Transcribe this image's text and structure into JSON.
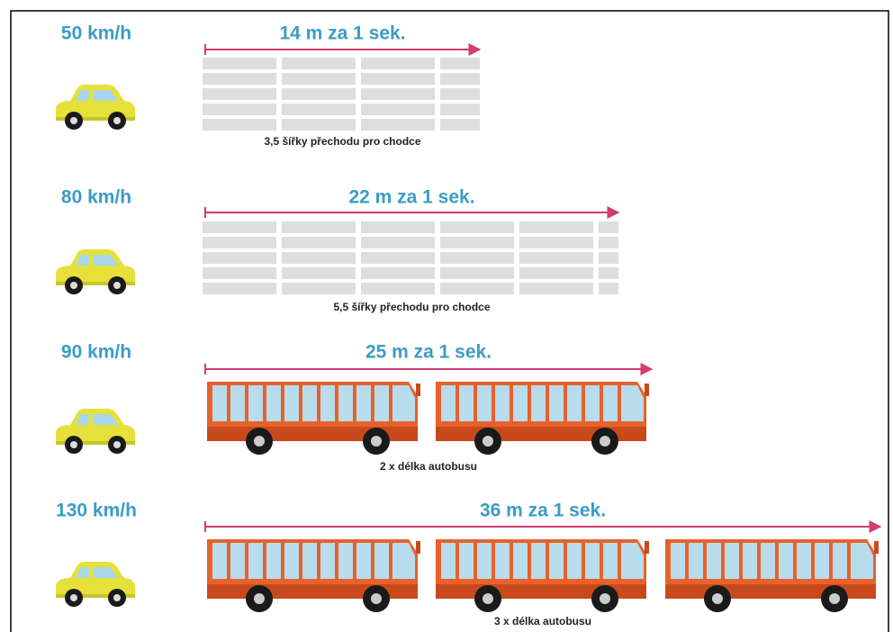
{
  "rows": [
    {
      "speed": "50 km/h",
      "distance": "14 m za 1 sek.",
      "caption": "3,5 šířky přechodu pro chodce"
    },
    {
      "speed": "80 km/h",
      "distance": "22 m za 1 sek.",
      "caption": "5,5 šířky přechodu pro chodce"
    },
    {
      "speed": "90 km/h",
      "distance": "25 m za 1 sek.",
      "caption": "2 x délka autobusu"
    },
    {
      "speed": "130 km/h",
      "distance": "36 m za 1 sek.",
      "caption": "3 x délka autobusu"
    }
  ]
}
